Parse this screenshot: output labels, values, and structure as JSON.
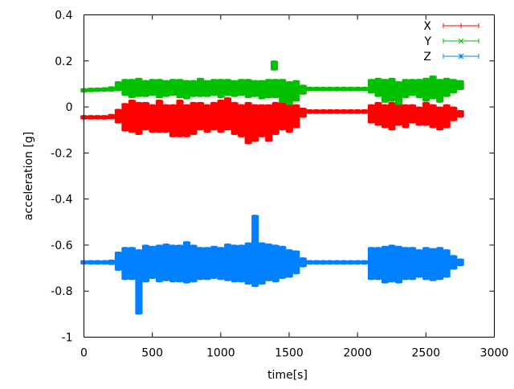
{
  "chart_data": {
    "type": "scatter",
    "style": "errorbars",
    "title": "",
    "xlabel": "time[s]",
    "ylabel": "acceleration [g]",
    "xlim": [
      0,
      3000
    ],
    "ylim": [
      -1,
      0.4
    ],
    "xticks": [
      0,
      500,
      1000,
      1500,
      2000,
      2500,
      3000
    ],
    "yticks": [
      -1,
      -0.8,
      -0.6,
      -0.4,
      -0.2,
      0,
      0.2,
      0.4
    ],
    "xtick_labels": [
      "0",
      "500",
      "1000",
      "1500",
      "2000",
      "2500",
      "3000"
    ],
    "ytick_labels": [
      "-1",
      "-0.8",
      "-0.6",
      "-0.4",
      "-0.2",
      "0",
      "0.2",
      "0.4"
    ],
    "grid": false,
    "legend_placement": "top-right",
    "point_format": [
      "time",
      "acceleration",
      "error"
    ],
    "series": [
      {
        "name": "X",
        "color": "#ff0000",
        "marker": "plus",
        "points": [
          [
            0,
            -0.045,
            0.008
          ],
          [
            50,
            -0.045,
            0.008
          ],
          [
            100,
            -0.045,
            0.008
          ],
          [
            150,
            -0.045,
            0.008
          ],
          [
            200,
            -0.042,
            0.01
          ],
          [
            250,
            -0.04,
            0.03
          ],
          [
            300,
            -0.045,
            0.06
          ],
          [
            350,
            -0.04,
            0.07
          ],
          [
            400,
            -0.05,
            0.07
          ],
          [
            450,
            -0.04,
            0.06
          ],
          [
            500,
            -0.05,
            0.06
          ],
          [
            550,
            -0.04,
            0.07
          ],
          [
            600,
            -0.05,
            0.06
          ],
          [
            650,
            -0.06,
            0.07
          ],
          [
            700,
            -0.05,
            0.08
          ],
          [
            750,
            -0.06,
            0.07
          ],
          [
            800,
            -0.05,
            0.07
          ],
          [
            850,
            -0.04,
            0.06
          ],
          [
            900,
            -0.05,
            0.06
          ],
          [
            950,
            -0.04,
            0.06
          ],
          [
            1000,
            -0.04,
            0.07
          ],
          [
            1050,
            -0.03,
            0.07
          ],
          [
            1100,
            -0.05,
            0.07
          ],
          [
            1150,
            -0.06,
            0.07
          ],
          [
            1200,
            -0.07,
            0.09
          ],
          [
            1250,
            -0.07,
            0.08
          ],
          [
            1300,
            -0.06,
            0.07
          ],
          [
            1350,
            -0.07,
            0.08
          ],
          [
            1400,
            -0.05,
            0.07
          ],
          [
            1450,
            -0.04,
            0.06
          ],
          [
            1500,
            -0.05,
            0.06
          ],
          [
            1550,
            -0.04,
            0.05
          ],
          [
            1600,
            -0.025,
            0.02
          ],
          [
            1650,
            -0.02,
            0.008
          ],
          [
            1700,
            -0.02,
            0.008
          ],
          [
            1750,
            -0.02,
            0.008
          ],
          [
            1800,
            -0.02,
            0.008
          ],
          [
            1850,
            -0.02,
            0.008
          ],
          [
            1900,
            -0.02,
            0.008
          ],
          [
            1950,
            -0.02,
            0.008
          ],
          [
            2000,
            -0.02,
            0.008
          ],
          [
            2050,
            -0.02,
            0.008
          ],
          [
            2100,
            -0.03,
            0.04
          ],
          [
            2150,
            -0.03,
            0.05
          ],
          [
            2200,
            -0.04,
            0.05
          ],
          [
            2250,
            -0.04,
            0.06
          ],
          [
            2300,
            -0.03,
            0.05
          ],
          [
            2350,
            -0.04,
            0.05
          ],
          [
            2400,
            -0.03,
            0.04
          ],
          [
            2450,
            -0.04,
            0.04
          ],
          [
            2500,
            -0.03,
            0.05
          ],
          [
            2550,
            -0.04,
            0.05
          ],
          [
            2600,
            -0.05,
            0.05
          ],
          [
            2650,
            -0.04,
            0.05
          ],
          [
            2700,
            -0.03,
            0.03
          ],
          [
            2750,
            -0.03,
            0.015
          ]
        ]
      },
      {
        "name": "Y",
        "color": "#00c000",
        "marker": "cross",
        "points": [
          [
            0,
            0.072,
            0.008
          ],
          [
            50,
            0.074,
            0.008
          ],
          [
            100,
            0.075,
            0.008
          ],
          [
            150,
            0.076,
            0.008
          ],
          [
            200,
            0.078,
            0.01
          ],
          [
            250,
            0.09,
            0.02
          ],
          [
            300,
            0.085,
            0.035
          ],
          [
            350,
            0.08,
            0.04
          ],
          [
            400,
            0.085,
            0.04
          ],
          [
            450,
            0.08,
            0.035
          ],
          [
            500,
            0.085,
            0.035
          ],
          [
            550,
            0.08,
            0.04
          ],
          [
            600,
            0.08,
            0.035
          ],
          [
            650,
            0.085,
            0.035
          ],
          [
            700,
            0.08,
            0.04
          ],
          [
            750,
            0.075,
            0.04
          ],
          [
            800,
            0.08,
            0.035
          ],
          [
            850,
            0.085,
            0.04
          ],
          [
            900,
            0.08,
            0.035
          ],
          [
            950,
            0.085,
            0.035
          ],
          [
            1000,
            0.08,
            0.04
          ],
          [
            1050,
            0.085,
            0.035
          ],
          [
            1100,
            0.08,
            0.035
          ],
          [
            1150,
            0.085,
            0.035
          ],
          [
            1200,
            0.08,
            0.04
          ],
          [
            1250,
            0.08,
            0.035
          ],
          [
            1300,
            0.075,
            0.04
          ],
          [
            1350,
            0.08,
            0.04
          ],
          [
            1400,
            0.08,
            0.04
          ],
          [
            1450,
            0.07,
            0.05
          ],
          [
            1500,
            0.06,
            0.05
          ],
          [
            1550,
            0.07,
            0.045
          ],
          [
            1600,
            0.075,
            0.02
          ],
          [
            1650,
            0.078,
            0.008
          ],
          [
            1700,
            0.078,
            0.008
          ],
          [
            1750,
            0.078,
            0.008
          ],
          [
            1800,
            0.078,
            0.008
          ],
          [
            1850,
            0.078,
            0.008
          ],
          [
            1900,
            0.078,
            0.008
          ],
          [
            1950,
            0.078,
            0.008
          ],
          [
            2000,
            0.078,
            0.008
          ],
          [
            2050,
            0.078,
            0.008
          ],
          [
            2100,
            0.09,
            0.03
          ],
          [
            2150,
            0.085,
            0.04
          ],
          [
            2200,
            0.07,
            0.05
          ],
          [
            2250,
            0.075,
            0.05
          ],
          [
            2300,
            0.06,
            0.05
          ],
          [
            2350,
            0.08,
            0.04
          ],
          [
            2400,
            0.085,
            0.035
          ],
          [
            2450,
            0.08,
            0.04
          ],
          [
            2500,
            0.075,
            0.05
          ],
          [
            2550,
            0.085,
            0.05
          ],
          [
            2600,
            0.07,
            0.05
          ],
          [
            2650,
            0.085,
            0.04
          ],
          [
            2700,
            0.09,
            0.03
          ],
          [
            2750,
            0.095,
            0.02
          ],
          [
            1390,
            0.18,
            0.02
          ]
        ]
      },
      {
        "name": "Z",
        "color": "#0080ff",
        "marker": "star",
        "points": [
          [
            0,
            -0.675,
            0.008
          ],
          [
            50,
            -0.675,
            0.008
          ],
          [
            100,
            -0.675,
            0.008
          ],
          [
            150,
            -0.675,
            0.008
          ],
          [
            200,
            -0.675,
            0.01
          ],
          [
            250,
            -0.67,
            0.04
          ],
          [
            300,
            -0.68,
            0.07
          ],
          [
            350,
            -0.68,
            0.07
          ],
          [
            400,
            -0.76,
            0.14
          ],
          [
            450,
            -0.68,
            0.08
          ],
          [
            500,
            -0.675,
            0.07
          ],
          [
            550,
            -0.68,
            0.08
          ],
          [
            600,
            -0.675,
            0.08
          ],
          [
            650,
            -0.68,
            0.08
          ],
          [
            700,
            -0.68,
            0.08
          ],
          [
            750,
            -0.675,
            0.09
          ],
          [
            800,
            -0.68,
            0.08
          ],
          [
            850,
            -0.68,
            0.07
          ],
          [
            900,
            -0.68,
            0.07
          ],
          [
            950,
            -0.675,
            0.07
          ],
          [
            1000,
            -0.68,
            0.07
          ],
          [
            1050,
            -0.675,
            0.08
          ],
          [
            1100,
            -0.68,
            0.08
          ],
          [
            1150,
            -0.68,
            0.08
          ],
          [
            1200,
            -0.68,
            0.09
          ],
          [
            1250,
            -0.57,
            0.1
          ],
          [
            1300,
            -0.68,
            0.09
          ],
          [
            1350,
            -0.675,
            0.08
          ],
          [
            1400,
            -0.68,
            0.08
          ],
          [
            1450,
            -0.675,
            0.07
          ],
          [
            1500,
            -0.68,
            0.06
          ],
          [
            1550,
            -0.675,
            0.05
          ],
          [
            1600,
            -0.675,
            0.02
          ],
          [
            1650,
            -0.675,
            0.008
          ],
          [
            1700,
            -0.675,
            0.008
          ],
          [
            1750,
            -0.675,
            0.008
          ],
          [
            1800,
            -0.675,
            0.008
          ],
          [
            1850,
            -0.675,
            0.008
          ],
          [
            1900,
            -0.675,
            0.008
          ],
          [
            1950,
            -0.675,
            0.008
          ],
          [
            2000,
            -0.675,
            0.008
          ],
          [
            2050,
            -0.675,
            0.008
          ],
          [
            2100,
            -0.68,
            0.07
          ],
          [
            2150,
            -0.68,
            0.07
          ],
          [
            2200,
            -0.685,
            0.08
          ],
          [
            2250,
            -0.68,
            0.08
          ],
          [
            2300,
            -0.685,
            0.08
          ],
          [
            2350,
            -0.68,
            0.07
          ],
          [
            2400,
            -0.68,
            0.07
          ],
          [
            2450,
            -0.68,
            0.06
          ],
          [
            2500,
            -0.68,
            0.07
          ],
          [
            2550,
            -0.685,
            0.07
          ],
          [
            2600,
            -0.68,
            0.07
          ],
          [
            2650,
            -0.68,
            0.06
          ],
          [
            2700,
            -0.675,
            0.03
          ],
          [
            2750,
            -0.675,
            0.015
          ],
          [
            1250,
            -0.68,
            0.1
          ]
        ]
      }
    ]
  }
}
